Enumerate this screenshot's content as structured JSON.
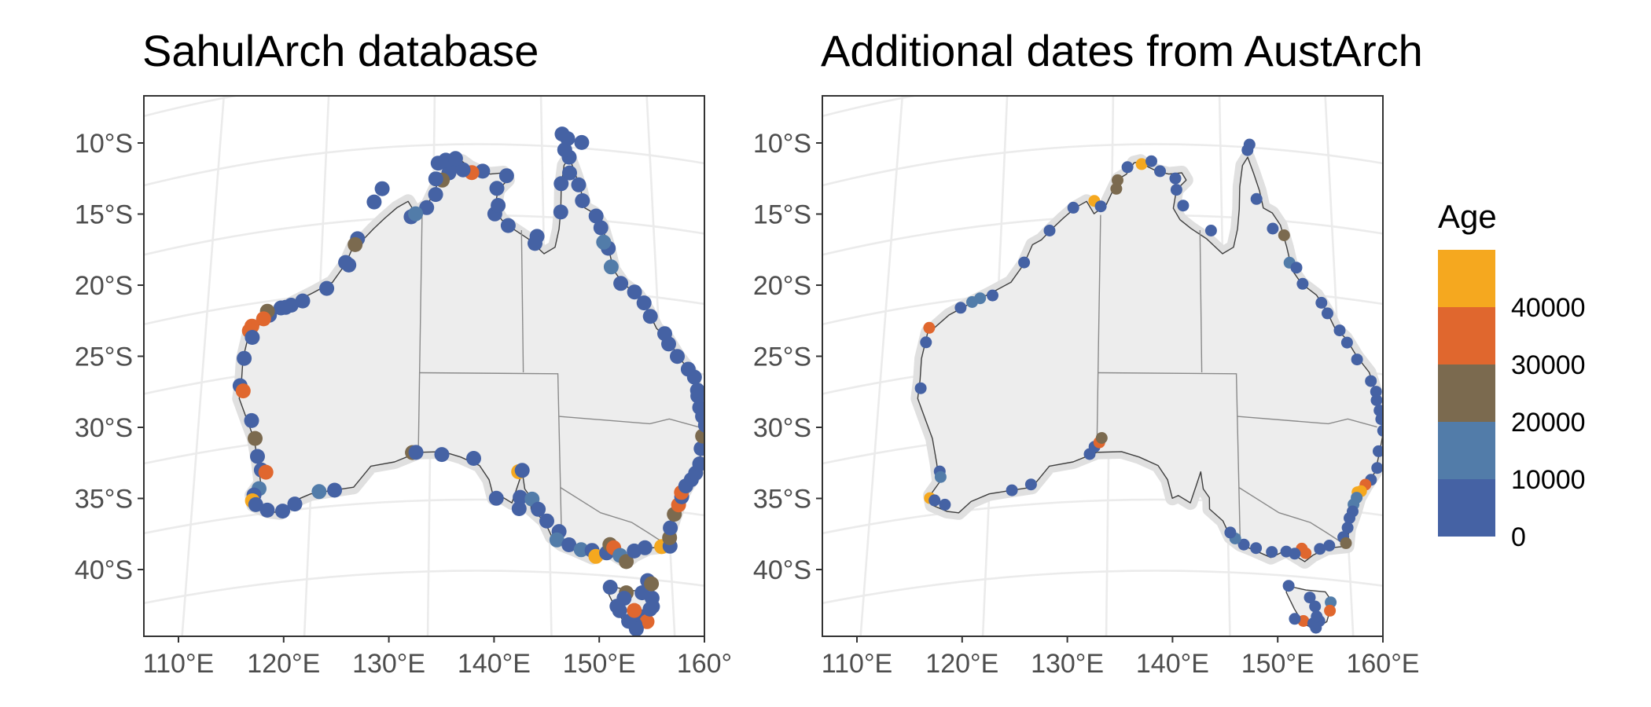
{
  "panels": [
    {
      "title": "SahulArch database",
      "lat_ticks": [
        "10°S",
        "15°S",
        "20°S",
        "25°S",
        "30°S",
        "35°S",
        "40°S"
      ],
      "lon_ticks": [
        "110°E",
        "120°E",
        "130°E",
        "140°E",
        "150°E",
        "160°"
      ],
      "sites": [
        [
          -13.8,
          124.6,
          5000
        ],
        [
          -12.9,
          125.3,
          5000
        ],
        [
          -15.0,
          128.0,
          5000
        ],
        [
          -16.3,
          123.2,
          5000
        ],
        [
          -16.7,
          123.0,
          25000
        ],
        [
          -17.9,
          122.2,
          5000
        ],
        [
          -18.1,
          122.5,
          5000
        ],
        [
          -19.6,
          120.6,
          5000
        ],
        [
          -20.3,
          118.5,
          5000
        ],
        [
          -20.5,
          117.5,
          5000
        ],
        [
          -20.6,
          117.0,
          5000
        ],
        [
          -20.6,
          116.6,
          5000
        ],
        [
          -21.0,
          115.6,
          5000
        ],
        [
          -20.7,
          115.4,
          25000
        ],
        [
          -21.2,
          115.1,
          35000
        ],
        [
          -21.6,
          114.1,
          35000
        ],
        [
          -21.9,
          113.9,
          35000
        ],
        [
          -22.4,
          114.2,
          5000
        ],
        [
          -23.8,
          113.6,
          5000
        ],
        [
          -25.7,
          113.4,
          5000
        ],
        [
          -26.1,
          113.7,
          35000
        ],
        [
          -28.3,
          114.6,
          5000
        ],
        [
          -29.6,
          115.0,
          25000
        ],
        [
          -30.9,
          115.3,
          5000
        ],
        [
          -31.9,
          115.7,
          5000
        ],
        [
          -32.1,
          116.1,
          35000
        ],
        [
          -33.2,
          115.6,
          15000
        ],
        [
          -33.6,
          115.2,
          5000
        ],
        [
          -34.0,
          115.1,
          45000
        ],
        [
          -34.3,
          115.4,
          5000
        ],
        [
          -34.8,
          116.4,
          5000
        ],
        [
          -35.0,
          117.7,
          5000
        ],
        [
          -34.6,
          118.7,
          5000
        ],
        [
          -33.9,
          120.7,
          15000
        ],
        [
          -33.9,
          122.0,
          5000
        ],
        [
          -31.6,
          128.5,
          25000
        ],
        [
          -31.6,
          128.8,
          5000
        ],
        [
          -31.8,
          131.0,
          5000
        ],
        [
          -32.1,
          133.7,
          5000
        ],
        [
          -34.9,
          135.6,
          5000
        ],
        [
          -33.0,
          137.5,
          45000
        ],
        [
          -32.9,
          137.8,
          5000
        ],
        [
          -34.8,
          137.6,
          5000
        ],
        [
          -35.6,
          137.5,
          5000
        ],
        [
          -34.9,
          138.6,
          15000
        ],
        [
          -35.6,
          139.1,
          5000
        ],
        [
          -36.4,
          139.8,
          5000
        ],
        [
          -37.1,
          140.8,
          5000
        ],
        [
          -37.7,
          140.6,
          15000
        ],
        [
          -38.0,
          141.6,
          5000
        ],
        [
          -38.3,
          142.6,
          15000
        ],
        [
          -38.3,
          143.5,
          5000
        ],
        [
          -38.7,
          143.8,
          45000
        ],
        [
          -38.4,
          144.7,
          5000
        ],
        [
          -37.8,
          145.0,
          25000
        ],
        [
          -38.0,
          145.3,
          35000
        ],
        [
          -38.5,
          145.8,
          15000
        ],
        [
          -38.9,
          146.3,
          25000
        ],
        [
          -38.1,
          147.0,
          5000
        ],
        [
          -37.8,
          147.9,
          5000
        ],
        [
          -37.6,
          149.3,
          45000
        ],
        [
          -37.5,
          150.0,
          5000
        ],
        [
          -36.9,
          150.0,
          25000
        ],
        [
          -36.2,
          150.1,
          5000
        ],
        [
          -35.2,
          150.5,
          25000
        ],
        [
          -34.5,
          150.9,
          35000
        ],
        [
          -33.9,
          151.2,
          5000
        ],
        [
          -33.6,
          151.2,
          35000
        ],
        [
          -33.1,
          151.6,
          5000
        ],
        [
          -32.6,
          152.1,
          5000
        ],
        [
          -32.1,
          152.5,
          5000
        ],
        [
          -31.4,
          152.9,
          5000
        ],
        [
          -30.3,
          153.1,
          5000
        ],
        [
          -29.4,
          153.3,
          25000
        ],
        [
          -28.6,
          153.6,
          5000
        ],
        [
          -28.0,
          153.4,
          5000
        ],
        [
          -27.4,
          153.2,
          5000
        ],
        [
          -26.6,
          153.1,
          5000
        ],
        [
          -26.2,
          153.1,
          5000
        ],
        [
          -25.3,
          152.9,
          5000
        ],
        [
          -24.8,
          152.4,
          5000
        ],
        [
          -24.0,
          151.5,
          5000
        ],
        [
          -23.2,
          150.8,
          5000
        ],
        [
          -22.5,
          150.5,
          5000
        ],
        [
          -21.4,
          149.3,
          5000
        ],
        [
          -20.5,
          148.8,
          5000
        ],
        [
          -19.8,
          148.0,
          5000
        ],
        [
          -19.3,
          146.8,
          5000
        ],
        [
          -18.2,
          146.0,
          15000
        ],
        [
          -16.9,
          145.8,
          5000
        ],
        [
          -16.5,
          145.4,
          15000
        ],
        [
          -15.5,
          145.2,
          5000
        ],
        [
          -14.7,
          144.8,
          5000
        ],
        [
          -13.7,
          143.6,
          5000
        ],
        [
          -12.6,
          143.3,
          5000
        ],
        [
          -11.8,
          142.5,
          5000
        ],
        [
          -10.7,
          142.5,
          5000
        ],
        [
          -10.2,
          142.1,
          5000
        ],
        [
          -9.6,
          143.7,
          5000
        ],
        [
          -9.4,
          142.4,
          5000
        ],
        [
          -9.1,
          141.9,
          5000
        ],
        [
          -12.6,
          141.7,
          5000
        ],
        [
          -14.6,
          141.6,
          5000
        ],
        [
          -16.4,
          139.4,
          5000
        ],
        [
          -16.9,
          139.2,
          5000
        ],
        [
          -15.7,
          136.8,
          5000
        ],
        [
          -14.9,
          135.6,
          5000
        ],
        [
          -14.3,
          135.9,
          5000
        ],
        [
          -13.1,
          135.8,
          5000
        ],
        [
          -12.2,
          136.7,
          5000
        ],
        [
          -11.9,
          134.5,
          5000
        ],
        [
          -12.0,
          133.5,
          35000
        ],
        [
          -11.8,
          132.7,
          5000
        ],
        [
          -11.4,
          132.0,
          5000
        ],
        [
          -11.3,
          130.4,
          5000
        ],
        [
          -12.0,
          131.4,
          5000
        ],
        [
          -12.5,
          130.8,
          25000
        ],
        [
          -12.4,
          130.2,
          5000
        ],
        [
          -13.5,
          130.2,
          5000
        ],
        [
          -14.4,
          129.4,
          5000
        ],
        [
          -14.8,
          128.4,
          15000
        ],
        [
          -11.1,
          131.1,
          5000
        ],
        [
          -11.0,
          132.0,
          5000
        ],
        [
          -40.8,
          144.9,
          5000
        ],
        [
          -41.1,
          146.2,
          25000
        ],
        [
          -41.0,
          147.5,
          5000
        ],
        [
          -41.3,
          148.3,
          5000
        ],
        [
          -42.1,
          145.4,
          5000
        ],
        [
          -42.4,
          145.6,
          5000
        ],
        [
          -42.9,
          147.1,
          35000
        ],
        [
          -42.7,
          147.4,
          5000
        ],
        [
          -43.0,
          147.8,
          35000
        ],
        [
          -43.3,
          146.8,
          5000
        ],
        [
          -43.6,
          146.9,
          5000
        ],
        [
          -42.1,
          148.1,
          5000
        ],
        [
          -41.9,
          148.3,
          5000
        ],
        [
          -40.1,
          148.0,
          5000
        ],
        [
          -40.3,
          148.3,
          25000
        ],
        [
          -41.5,
          146.0,
          5000
        ],
        [
          -43.1,
          146.3,
          5000
        ],
        [
          -42.3,
          146.8,
          35000
        ]
      ]
    },
    {
      "title": "Additional dates from AustArch",
      "lat_ticks": [
        "10°S",
        "15°S",
        "20°S",
        "25°S",
        "30°S",
        "35°S",
        "40°S"
      ],
      "lon_ticks": [
        "110°E",
        "120°E",
        "130°E",
        "140°E",
        "150°E",
        "160°E"
      ],
      "sites": [
        [
          -14.3,
          126.5,
          5000
        ],
        [
          -15.8,
          124.4,
          5000
        ],
        [
          -17.9,
          122.2,
          5000
        ],
        [
          -20.0,
          119.5,
          5000
        ],
        [
          -20.1,
          118.4,
          15000
        ],
        [
          -20.3,
          117.7,
          15000
        ],
        [
          -20.6,
          116.7,
          5000
        ],
        [
          -21.7,
          114.0,
          35000
        ],
        [
          -22.7,
          113.8,
          5000
        ],
        [
          -25.9,
          113.6,
          5000
        ],
        [
          -32.0,
          115.7,
          5000
        ],
        [
          -32.4,
          115.8,
          15000
        ],
        [
          -33.8,
          115.0,
          45000
        ],
        [
          -34.0,
          115.4,
          5000
        ],
        [
          -34.4,
          116.3,
          5000
        ],
        [
          -33.9,
          121.9,
          5000
        ],
        [
          -33.6,
          123.5,
          5000
        ],
        [
          -31.7,
          128.4,
          5000
        ],
        [
          -31.2,
          128.8,
          5000
        ],
        [
          -30.9,
          129.2,
          35000
        ],
        [
          -30.6,
          129.4,
          25000
        ],
        [
          -13.9,
          128.4,
          45000
        ],
        [
          -14.3,
          129.0,
          5000
        ],
        [
          -12.5,
          130.5,
          25000
        ],
        [
          -13.1,
          130.4,
          25000
        ],
        [
          -11.6,
          131.4,
          5000
        ],
        [
          -11.4,
          132.7,
          45000
        ],
        [
          -11.2,
          133.6,
          5000
        ],
        [
          -11.9,
          134.4,
          5000
        ],
        [
          -12.4,
          135.8,
          5000
        ],
        [
          -13.2,
          135.9,
          5000
        ],
        [
          -14.3,
          136.5,
          5000
        ],
        [
          -16.0,
          139.0,
          5000
        ],
        [
          -9.8,
          142.7,
          5000
        ],
        [
          -10.2,
          142.5,
          5000
        ],
        [
          -13.6,
          143.2,
          5000
        ],
        [
          -15.6,
          144.6,
          5000
        ],
        [
          -16.0,
          145.6,
          25000
        ],
        [
          -17.9,
          146.0,
          15000
        ],
        [
          -18.2,
          146.6,
          5000
        ],
        [
          -19.3,
          147.1,
          5000
        ],
        [
          -20.5,
          148.7,
          5000
        ],
        [
          -21.2,
          149.2,
          5000
        ],
        [
          -22.3,
          150.2,
          5000
        ],
        [
          -23.1,
          150.8,
          5000
        ],
        [
          -24.2,
          151.6,
          5000
        ],
        [
          -25.6,
          152.7,
          5000
        ],
        [
          -26.3,
          153.1,
          5000
        ],
        [
          -26.9,
          153.1,
          5000
        ],
        [
          -27.6,
          153.3,
          5000
        ],
        [
          -28.2,
          153.4,
          5000
        ],
        [
          -29.0,
          153.5,
          5000
        ],
        [
          -30.5,
          153.0,
          5000
        ],
        [
          -31.7,
          152.8,
          5000
        ],
        [
          -32.6,
          152.2,
          5000
        ],
        [
          -33.0,
          151.7,
          35000
        ],
        [
          -33.5,
          151.3,
          45000
        ],
        [
          -33.6,
          151.0,
          45000
        ],
        [
          -34.0,
          150.9,
          15000
        ],
        [
          -34.5,
          150.6,
          15000
        ],
        [
          -35.0,
          150.5,
          5000
        ],
        [
          -35.5,
          150.2,
          5000
        ],
        [
          -36.2,
          150.0,
          5000
        ],
        [
          -36.9,
          149.6,
          5000
        ],
        [
          -37.3,
          149.8,
          25000
        ],
        [
          -37.6,
          148.4,
          5000
        ],
        [
          -37.9,
          147.6,
          5000
        ],
        [
          -38.3,
          146.4,
          35000
        ],
        [
          -38.0,
          146.1,
          35000
        ],
        [
          -38.4,
          145.5,
          5000
        ],
        [
          -38.3,
          144.8,
          5000
        ],
        [
          -38.4,
          143.6,
          5000
        ],
        [
          -38.2,
          142.3,
          5000
        ],
        [
          -38.0,
          141.3,
          5000
        ],
        [
          -37.6,
          140.6,
          15000
        ],
        [
          -37.2,
          140.2,
          5000
        ],
        [
          -40.7,
          144.9,
          5000
        ],
        [
          -41.4,
          146.6,
          5000
        ],
        [
          -41.6,
          148.3,
          15000
        ],
        [
          -42.2,
          148.2,
          35000
        ],
        [
          -42.0,
          147.0,
          5000
        ],
        [
          -43.1,
          146.0,
          35000
        ],
        [
          -43.0,
          147.3,
          5000
        ],
        [
          -43.5,
          147.0,
          5000
        ],
        [
          -43.2,
          146.8,
          5000
        ],
        [
          -42.7,
          147.1,
          5000
        ],
        [
          -43.0,
          145.3,
          5000
        ]
      ]
    }
  ],
  "legend": {
    "title": "Age",
    "labels": [
      "40000",
      "30000",
      "20000",
      "10000",
      "0"
    ],
    "colors": [
      "#f5a81f",
      "#e0672e",
      "#7b6a4f",
      "#527ca9",
      "#4562a4"
    ]
  }
}
